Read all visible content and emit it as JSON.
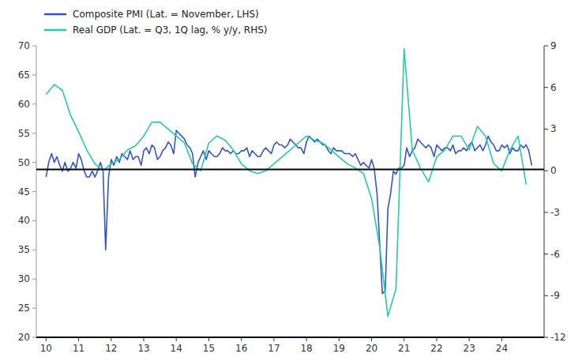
{
  "chart_data": {
    "type": "line",
    "xlim": [
      9.7,
      25.3
    ],
    "xticks": [
      10,
      11,
      12,
      13,
      14,
      15,
      16,
      17,
      18,
      19,
      20,
      21,
      22,
      23,
      24
    ],
    "ylim": [
      20,
      70
    ],
    "yticks": [
      20,
      25,
      30,
      35,
      40,
      45,
      50,
      55,
      60,
      65,
      70
    ],
    "y2lim": [
      -12,
      9
    ],
    "y2ticks": [
      -12,
      -9,
      -6,
      -3,
      0,
      3,
      6,
      9
    ],
    "reference_line": 48.8,
    "grid": false,
    "legend": "upper left",
    "series": [
      {
        "name": "Composite PMI (Lat. = November, LHS)",
        "color": "#3355cc",
        "x": [
          10.0,
          10.08,
          10.17,
          10.25,
          10.33,
          10.42,
          10.5,
          10.58,
          10.67,
          10.75,
          10.83,
          10.92,
          11.0,
          11.08,
          11.17,
          11.25,
          11.33,
          11.42,
          11.5,
          11.58,
          11.67,
          11.75,
          11.83,
          11.92,
          12.0,
          12.08,
          12.17,
          12.25,
          12.33,
          12.42,
          12.5,
          12.58,
          12.67,
          12.75,
          12.83,
          12.92,
          13.0,
          13.08,
          13.17,
          13.25,
          13.33,
          13.42,
          13.5,
          13.58,
          13.67,
          13.75,
          13.83,
          13.92,
          14.0,
          14.08,
          14.17,
          14.25,
          14.33,
          14.42,
          14.5,
          14.58,
          14.67,
          14.75,
          14.83,
          14.92,
          15.0,
          15.08,
          15.17,
          15.25,
          15.33,
          15.42,
          15.5,
          15.58,
          15.67,
          15.75,
          15.83,
          15.92,
          16.0,
          16.08,
          16.17,
          16.25,
          16.33,
          16.42,
          16.5,
          16.58,
          16.67,
          16.75,
          16.83,
          16.92,
          17.0,
          17.08,
          17.17,
          17.25,
          17.33,
          17.42,
          17.5,
          17.58,
          17.67,
          17.75,
          17.83,
          17.92,
          18.0,
          18.08,
          18.17,
          18.25,
          18.33,
          18.42,
          18.5,
          18.58,
          18.67,
          18.75,
          18.83,
          18.92,
          19.0,
          19.08,
          19.17,
          19.25,
          19.33,
          19.42,
          19.5,
          19.58,
          19.67,
          19.75,
          19.83,
          19.92,
          20.0,
          20.08,
          20.17,
          20.33,
          20.42,
          20.5,
          20.58,
          20.67,
          20.75,
          20.83,
          20.92,
          21.0,
          21.08,
          21.17,
          21.25,
          21.33,
          21.42,
          21.5,
          21.58,
          21.67,
          21.75,
          21.83,
          21.92,
          22.0,
          22.08,
          22.17,
          22.25,
          22.33,
          22.42,
          22.5,
          22.58,
          22.67,
          22.75,
          22.83,
          22.92,
          23.0,
          23.08,
          23.17,
          23.25,
          23.33,
          23.42,
          23.5,
          23.58,
          23.67,
          23.75,
          23.83,
          23.92,
          24.0,
          24.08,
          24.17,
          24.25,
          24.33,
          24.42,
          24.5,
          24.58,
          24.67,
          24.75,
          24.83,
          24.92
        ],
        "values": [
          47.5,
          50.0,
          51.5,
          50.0,
          51.0,
          49.5,
          48.5,
          50.0,
          48.5,
          49.0,
          50.0,
          49.0,
          51.5,
          50.5,
          48.5,
          47.5,
          47.5,
          48.5,
          47.5,
          48.5,
          50.0,
          48.5,
          35.0,
          47.5,
          50.5,
          49.5,
          51.0,
          50.0,
          51.5,
          51.0,
          50.5,
          52.0,
          50.5,
          51.0,
          51.0,
          49.5,
          52.0,
          52.5,
          51.5,
          53.0,
          52.5,
          50.5,
          51.0,
          52.0,
          52.5,
          53.5,
          53.0,
          51.5,
          55.5,
          55.0,
          54.5,
          54.0,
          53.0,
          52.5,
          51.5,
          47.5,
          50.0,
          51.0,
          52.0,
          50.5,
          52.0,
          51.5,
          51.0,
          51.0,
          51.5,
          52.5,
          52.0,
          52.0,
          51.5,
          52.0,
          51.5,
          51.5,
          52.0,
          52.0,
          52.5,
          51.0,
          52.0,
          51.5,
          51.0,
          51.0,
          52.0,
          52.5,
          52.0,
          51.5,
          53.0,
          53.5,
          53.0,
          53.0,
          52.5,
          53.0,
          54.0,
          53.5,
          53.0,
          52.5,
          52.5,
          51.5,
          53.5,
          54.5,
          54.0,
          53.5,
          54.0,
          53.5,
          53.0,
          53.0,
          52.0,
          51.5,
          52.5,
          52.0,
          52.0,
          52.0,
          51.5,
          51.5,
          51.5,
          51.0,
          51.5,
          50.5,
          49.5,
          50.0,
          49.5,
          49.0,
          50.5,
          49.0,
          44.5,
          27.5,
          28.0,
          42.0,
          44.5,
          48.5,
          48.0,
          49.0,
          49.0,
          49.5,
          52.5,
          51.0,
          52.0,
          52.5,
          54.0,
          53.5,
          53.0,
          52.5,
          53.0,
          52.5,
          51.0,
          53.0,
          52.5,
          52.0,
          52.5,
          52.5,
          52.0,
          53.0,
          51.5,
          52.0,
          52.0,
          52.5,
          52.0,
          53.0,
          53.5,
          52.0,
          52.5,
          53.0,
          52.0,
          53.0,
          54.5,
          53.5,
          53.0,
          52.0,
          52.0,
          53.0,
          52.5,
          53.0,
          51.5,
          52.5,
          52.0,
          52.0,
          53.0,
          52.5,
          53.0,
          52.0,
          49.5
        ]
      },
      {
        "name": "Real GDP (Lat. = Q3, 1Q lag, % y/y, RHS)",
        "color": "#22ccaa",
        "axis": "y2",
        "x": [
          10.0,
          10.25,
          10.5,
          10.75,
          11.0,
          11.25,
          11.5,
          11.75,
          12.0,
          12.25,
          12.5,
          12.75,
          13.0,
          13.25,
          13.5,
          13.75,
          14.0,
          14.25,
          14.5,
          14.75,
          15.0,
          15.25,
          15.5,
          15.75,
          16.0,
          16.25,
          16.5,
          16.75,
          17.0,
          17.25,
          17.5,
          17.75,
          18.0,
          18.25,
          18.5,
          18.75,
          19.0,
          19.25,
          19.5,
          19.75,
          20.0,
          20.25,
          20.5,
          20.75,
          21.0,
          21.25,
          21.5,
          21.75,
          22.0,
          22.25,
          22.5,
          22.75,
          23.0,
          23.25,
          23.5,
          23.75,
          24.0,
          24.25,
          24.5,
          24.75
        ],
        "values": [
          5.5,
          6.2,
          5.8,
          4.0,
          2.8,
          1.5,
          0.5,
          0.0,
          0.5,
          0.8,
          1.5,
          1.8,
          2.5,
          3.5,
          3.5,
          3.0,
          2.5,
          2.0,
          0.5,
          0.0,
          2.0,
          2.5,
          2.2,
          1.5,
          0.5,
          0.0,
          -0.2,
          0.0,
          0.5,
          1.0,
          1.5,
          2.0,
          2.5,
          2.2,
          2.0,
          1.5,
          1.0,
          0.5,
          0.2,
          -0.2,
          -2.0,
          -5.5,
          -10.5,
          -8.5,
          8.8,
          1.5,
          0.2,
          -0.8,
          1.0,
          1.5,
          2.5,
          2.5,
          1.5,
          3.2,
          2.5,
          0.5,
          0.0,
          1.5,
          2.5,
          -1.0
        ]
      }
    ]
  }
}
